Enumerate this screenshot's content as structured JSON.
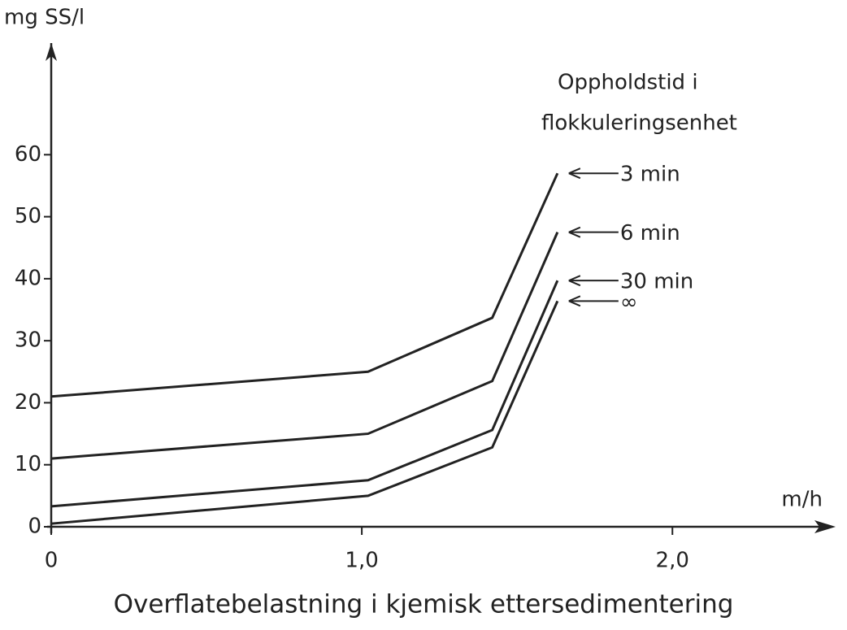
{
  "chart_data": {
    "type": "line",
    "y_label": "mg SS/l",
    "x_label": "m/h",
    "title": "Overflatebelastning i kjemisk ettersedimentering",
    "legend_title": [
      "Oppholdstid i",
      "flokkuleringsenhet"
    ],
    "x": [
      0,
      1.02,
      1.42,
      1.63
    ],
    "series": [
      {
        "name": "3 min",
        "color": "#222222",
        "values": [
          21,
          25,
          33.7,
          57
        ]
      },
      {
        "name": "6 min",
        "color": "#222222",
        "values": [
          11,
          15,
          23.5,
          47.5
        ]
      },
      {
        "name": "30 min",
        "color": "#222222",
        "values": [
          3.3,
          7.5,
          15.6,
          39.7
        ]
      },
      {
        "name": "∞",
        "color": "#222222",
        "values": [
          0.5,
          5,
          12.8,
          36.4
        ]
      }
    ],
    "xlim": [
      0,
      2.46
    ],
    "ylim": [
      0,
      78
    ],
    "xticks": [
      0,
      {
        "value": 1,
        "label": "1,0"
      },
      {
        "value": 2,
        "label": "2,0"
      }
    ],
    "yticks": [
      0,
      10,
      20,
      30,
      40,
      50,
      60
    ]
  }
}
